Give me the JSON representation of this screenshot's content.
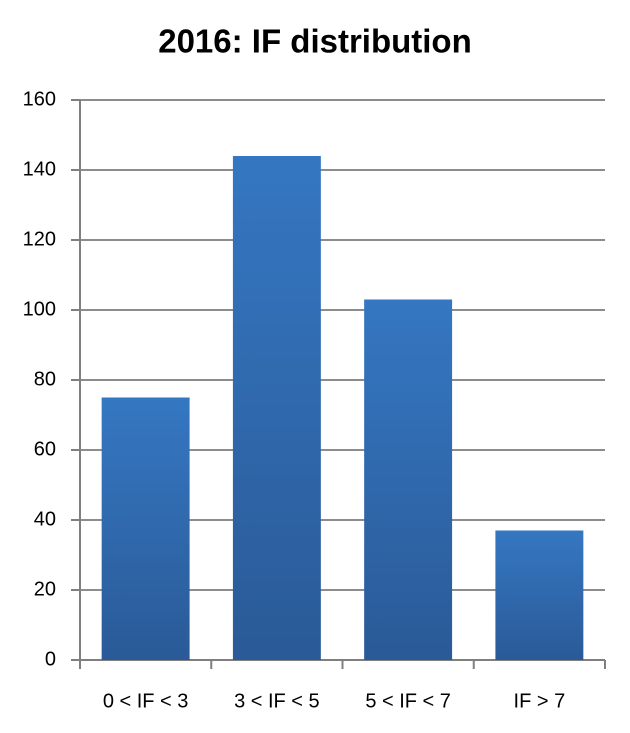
{
  "chart_data": {
    "type": "bar",
    "title": "2016: IF distribution",
    "categories": [
      "0 < IF < 3",
      "3 < IF < 5",
      "5 < IF < 7",
      "IF > 7"
    ],
    "values": [
      75,
      144,
      103,
      37
    ],
    "color": "#3577c2",
    "ylim": [
      0,
      160
    ],
    "yticks": [
      0,
      20,
      40,
      60,
      80,
      100,
      120,
      140,
      160
    ],
    "grid": true
  }
}
